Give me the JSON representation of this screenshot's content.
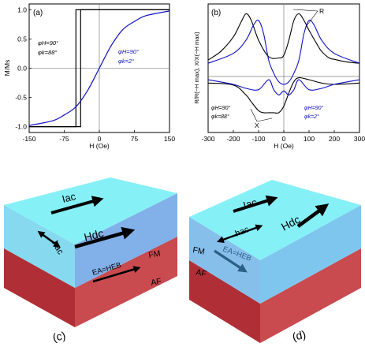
{
  "panels": {
    "a": {
      "label": "(a)",
      "ylabel": "M/Ms",
      "xlabel": "H (Oe)",
      "x_ticks": [
        "-150",
        "-75",
        "0",
        "75",
        "150"
      ],
      "y_ticks": [
        "1.0",
        "0.5",
        "0.0",
        "-0.5",
        "-1.0"
      ],
      "legend_black": [
        "φH=90°",
        "φk=88°"
      ],
      "legend_blue": [
        "φH=90°",
        "φk=2°"
      ]
    },
    "b": {
      "label": "(b)",
      "ylabel": "R/R(−H max), X/X(−H max)",
      "xlabel": "H (Oe)",
      "x_ticks": [
        "-300",
        "-200",
        "-100",
        "0",
        "100",
        "200",
        "300"
      ],
      "annot_R": "R",
      "annot_X": "X",
      "legend_black": [
        "φH=90°",
        "φk=88°"
      ],
      "legend_blue": [
        "φH=90°",
        "φk=2°"
      ]
    },
    "c": {
      "label": "(c)",
      "arrows": [
        "Iac",
        "hac",
        "Hdc",
        "EA=HEB"
      ],
      "layers": [
        "FM",
        "AF"
      ]
    },
    "d": {
      "label": "(d)",
      "arrows": [
        "Iac",
        "hac",
        "Hdc",
        "EA=HEB"
      ],
      "layers": [
        "FM",
        "AF"
      ]
    }
  },
  "colors": {
    "black_curve": "#000000",
    "blue_curve": "#1010c8",
    "fm_layer": "#7fe6f2",
    "af_layer": "#c23838",
    "ea_arrow_d": "#2a5f86"
  },
  "chart_data": [
    {
      "type": "line",
      "panel": "a",
      "xlabel": "H (Oe)",
      "ylabel": "M/Ms",
      "xlim": [
        -150,
        150
      ],
      "ylim": [
        -1.1,
        1.1
      ],
      "series": [
        {
          "name": "φH=90°, φk=88°",
          "branch": "descending",
          "x": [
            150,
            -50,
            -50,
            -150
          ],
          "y": [
            1,
            1,
            -1,
            -1
          ]
        },
        {
          "name": "φH=90°, φk=88°",
          "branch": "ascending",
          "x": [
            -150,
            -40,
            -40,
            150
          ],
          "y": [
            -1,
            -1,
            1,
            1
          ]
        },
        {
          "name": "φH=90°, φk=2°",
          "x": [
            -150,
            -100,
            -75,
            -50,
            -25,
            0,
            25,
            50,
            75,
            100,
            150
          ],
          "y": [
            -0.98,
            -0.9,
            -0.8,
            -0.66,
            -0.38,
            0,
            0.38,
            0.66,
            0.8,
            0.9,
            0.98
          ]
        }
      ]
    },
    {
      "type": "line",
      "panel": "b",
      "xlabel": "H (Oe)",
      "ylabel": "R/R(−H max), X/X(−H max)",
      "xlim": [
        -300,
        300
      ],
      "series": [
        {
          "name": "R φH=90°, φk=88°",
          "x": [
            -300,
            -250,
            -200,
            -170,
            -150,
            -130,
            -100,
            -60,
            -20,
            0,
            20,
            40,
            60,
            80,
            100,
            130,
            150,
            180,
            200,
            250,
            300
          ],
          "y": [
            0.25,
            0.38,
            0.6,
            0.82,
            0.95,
            0.86,
            0.55,
            0.3,
            0.28,
            0.32,
            0.55,
            0.85,
            0.95,
            0.85,
            0.7,
            0.5,
            0.38,
            0.28,
            0.26,
            0.22,
            0.2
          ]
        },
        {
          "name": "X φH=90°, φk=88°",
          "x": [
            -300,
            -200,
            -150,
            -130,
            -100,
            -80,
            -60,
            -40,
            -20,
            0,
            20,
            40,
            60,
            100,
            150,
            200,
            300
          ],
          "y": [
            -0.1,
            -0.13,
            -0.28,
            -0.38,
            -0.52,
            -0.55,
            -0.55,
            -0.55,
            -0.55,
            -0.45,
            -0.25,
            -0.08,
            -0.02,
            -0.05,
            -0.1,
            -0.12,
            -0.1
          ]
        },
        {
          "name": "R φH=90°, φk=2°",
          "x": [
            -300,
            -200,
            -150,
            -120,
            -100,
            -80,
            -60,
            -40,
            -20,
            0,
            20,
            40,
            60,
            80,
            100,
            120,
            150,
            200,
            300
          ],
          "y": [
            0.2,
            0.35,
            0.55,
            0.78,
            0.85,
            0.65,
            0.25,
            0.05,
            -0.08,
            -0.12,
            -0.08,
            0.05,
            0.25,
            0.65,
            0.85,
            0.78,
            0.55,
            0.35,
            0.2
          ]
        },
        {
          "name": "X φH=90°, φk=2°",
          "x": [
            -300,
            -200,
            -150,
            -100,
            -60,
            -40,
            -20,
            0,
            20,
            40,
            60,
            100,
            150,
            200,
            300
          ],
          "y": [
            -0.05,
            -0.12,
            -0.18,
            -0.2,
            -0.05,
            -0.2,
            -0.28,
            -0.22,
            -0.28,
            -0.2,
            -0.05,
            -0.2,
            -0.18,
            -0.12,
            -0.05
          ]
        }
      ]
    }
  ]
}
